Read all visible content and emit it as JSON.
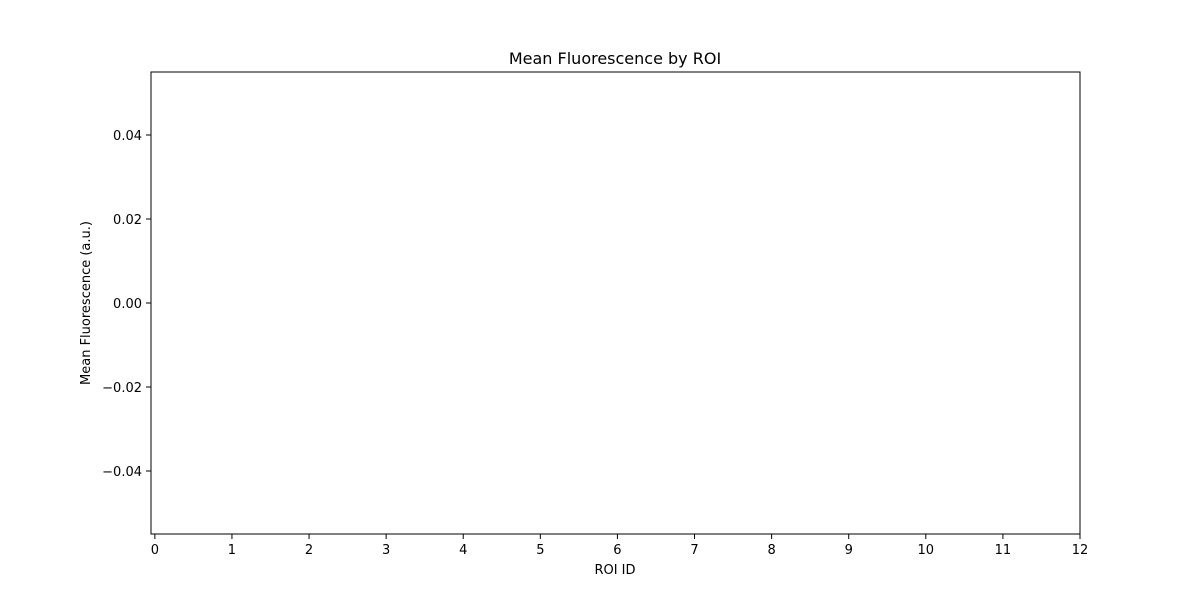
{
  "chart_data": {
    "type": "bar",
    "title": "Mean Fluorescence by ROI",
    "xlabel": "ROI ID",
    "ylabel": "Mean Fluorescence (a.u.)",
    "xlim": [
      -0.05,
      12
    ],
    "ylim": [
      -0.055,
      0.055
    ],
    "xticks": [
      0,
      1,
      2,
      3,
      4,
      5,
      6,
      7,
      8,
      9,
      10,
      11,
      12
    ],
    "xtick_labels": [
      "0",
      "1",
      "2",
      "3",
      "4",
      "5",
      "6",
      "7",
      "8",
      "9",
      "10",
      "11",
      "12"
    ],
    "yticks": [
      -0.04,
      -0.02,
      0.0,
      0.02,
      0.04
    ],
    "ytick_labels": [
      "−0.04",
      "−0.02",
      "0.00",
      "0.02",
      "0.04"
    ],
    "categories": [],
    "values": [],
    "grid": false,
    "colors": {
      "axes": "#000000",
      "background": "#ffffff"
    }
  }
}
